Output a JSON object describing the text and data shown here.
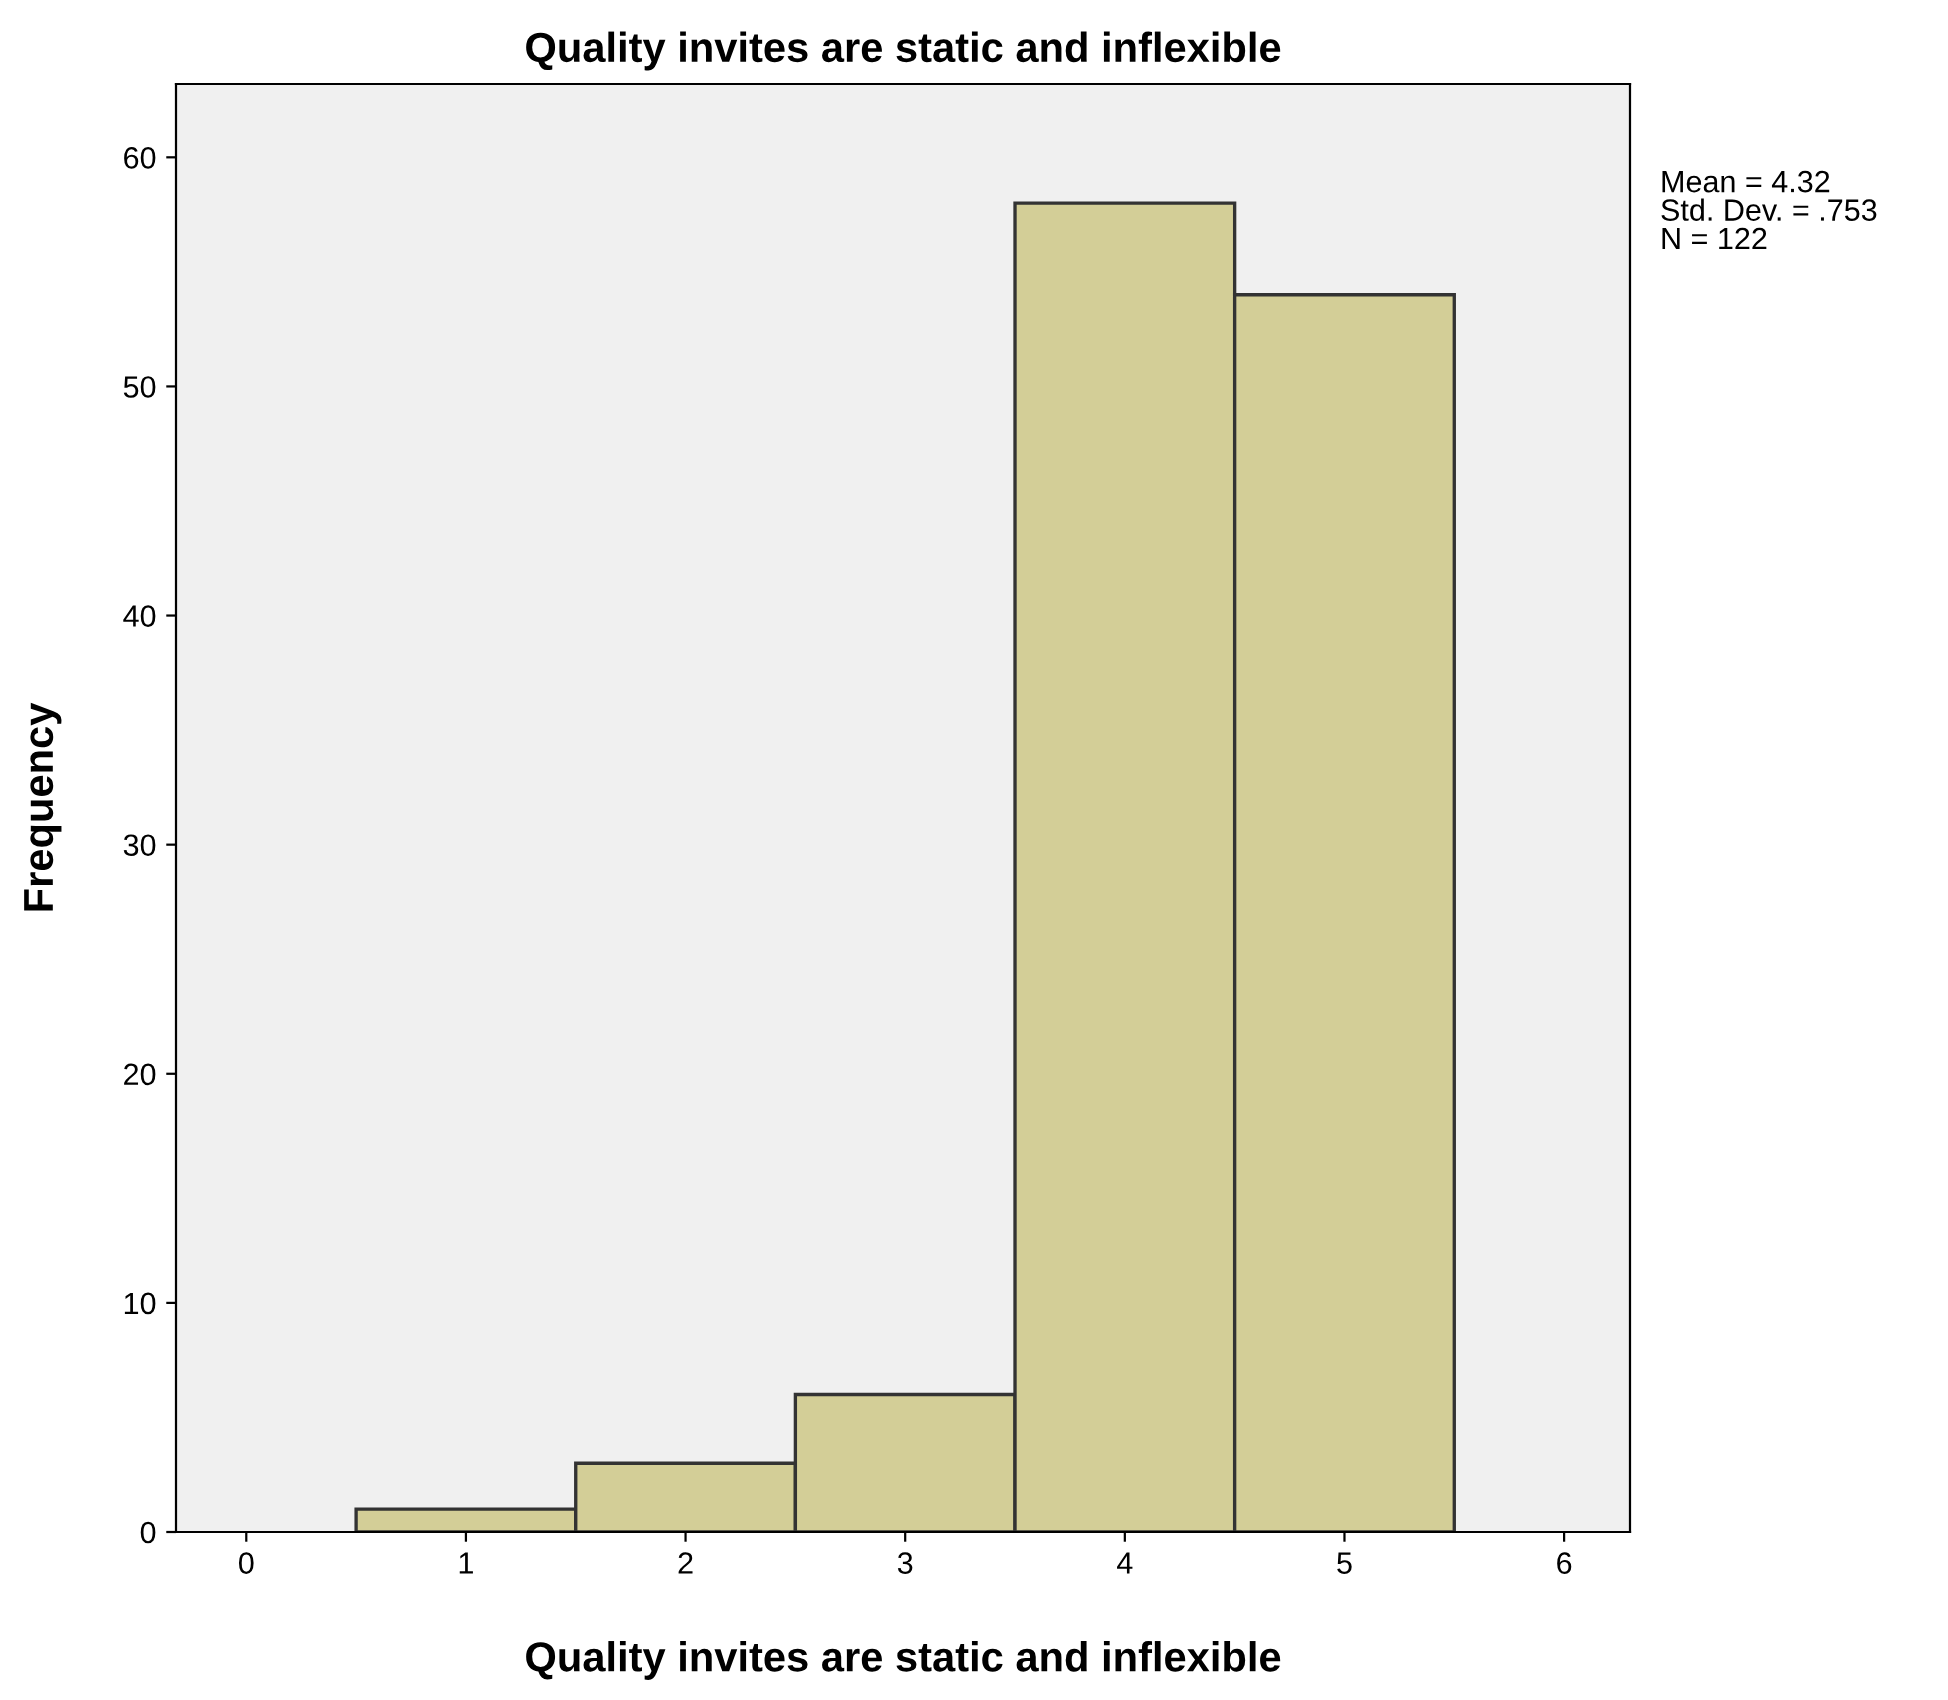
{
  "chart_data": {
    "type": "histogram",
    "title": "Quality invites are static and inflexible",
    "xlabel": "Quality invites are static and inflexible",
    "ylabel": "Frequency",
    "bins": [
      0.5,
      1.5,
      2.5,
      3.5,
      4.5,
      5.5
    ],
    "values": [
      1,
      3,
      6,
      58,
      54
    ],
    "color": "#d3ce97",
    "xlim": [
      -0.32,
      6.3
    ],
    "xticks": [
      0,
      1,
      2,
      3,
      4,
      5,
      6
    ],
    "ylim": [
      0,
      63.2
    ],
    "yticks": [
      0,
      10,
      20,
      30,
      40,
      50,
      60
    ],
    "annotations": [
      "Mean = 4.32\nStd. Dev. = .753\nN = 122"
    ],
    "grid": false
  }
}
